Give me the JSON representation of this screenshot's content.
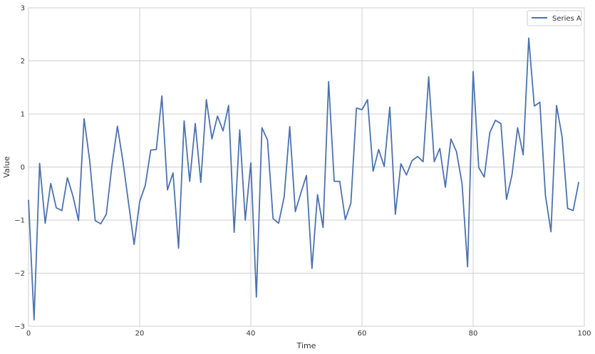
{
  "chart_data": {
    "type": "line",
    "title": "",
    "xlabel": "Time",
    "ylabel": "Value",
    "xlim": [
      0,
      100
    ],
    "ylim": [
      -3,
      3
    ],
    "xticks": [
      0,
      20,
      40,
      60,
      80,
      100
    ],
    "yticks": [
      -3,
      -2,
      -1,
      0,
      1,
      2,
      3
    ],
    "xtick_labels": [
      "0",
      "20",
      "40",
      "60",
      "80",
      "100"
    ],
    "ytick_labels": [
      "−3",
      "−2",
      "−1",
      "0",
      "1",
      "2",
      "3"
    ],
    "grid": true,
    "legend": {
      "position": "top-right",
      "entries": [
        "Series A"
      ]
    },
    "series": [
      {
        "name": "Series A",
        "color": "#4c72b0",
        "x": [
          0,
          1,
          2,
          3,
          4,
          5,
          6,
          7,
          8,
          9,
          10,
          11,
          12,
          13,
          14,
          15,
          16,
          17,
          18,
          19,
          20,
          21,
          22,
          23,
          24,
          25,
          26,
          27,
          28,
          29,
          30,
          31,
          32,
          33,
          34,
          35,
          36,
          37,
          38,
          39,
          40,
          41,
          42,
          43,
          44,
          45,
          46,
          47,
          48,
          49,
          50,
          51,
          52,
          53,
          54,
          55,
          56,
          57,
          58,
          59,
          60,
          61,
          62,
          63,
          64,
          65,
          66,
          67,
          68,
          69,
          70,
          71,
          72,
          73,
          74,
          75,
          76,
          77,
          78,
          79,
          80,
          81,
          82,
          83,
          84,
          85,
          86,
          87,
          88,
          89,
          90,
          91,
          92,
          93,
          94,
          95,
          96,
          97,
          98,
          99
        ],
        "values": [
          -0.62,
          -2.88,
          0.07,
          -1.06,
          -0.31,
          -0.77,
          -0.82,
          -0.2,
          -0.55,
          -1.01,
          0.91,
          0.13,
          -1.01,
          -1.07,
          -0.89,
          0.02,
          0.77,
          0.1,
          -0.68,
          -1.46,
          -0.65,
          -0.35,
          0.32,
          0.33,
          1.34,
          -0.43,
          -0.11,
          -1.53,
          0.87,
          -0.27,
          0.82,
          -0.29,
          1.27,
          0.53,
          0.96,
          0.68,
          1.16,
          -1.23,
          0.7,
          -1.0,
          0.08,
          -2.45,
          0.74,
          0.51,
          -0.97,
          -1.06,
          -0.56,
          0.76,
          -0.84,
          -0.49,
          -0.16,
          -1.91,
          -0.52,
          -1.14,
          1.61,
          -0.27,
          -0.27,
          -0.99,
          -0.68,
          1.11,
          1.08,
          1.27,
          -0.08,
          0.33,
          0.01,
          1.13,
          -0.89,
          0.06,
          -0.15,
          0.12,
          0.2,
          0.1,
          1.7,
          0.1,
          0.35,
          -0.38,
          0.53,
          0.29,
          -0.31,
          -1.88,
          1.8,
          -0.01,
          -0.19,
          0.65,
          0.88,
          0.82,
          -0.61,
          -0.14,
          0.74,
          0.23,
          2.43,
          1.15,
          1.22,
          -0.53,
          -1.22,
          1.16,
          0.57,
          -0.78,
          -0.82,
          -0.28
        ]
      }
    ]
  }
}
